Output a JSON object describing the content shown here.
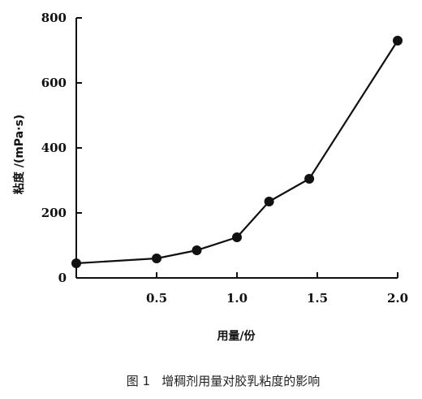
{
  "chart_data": {
    "type": "line",
    "caption": "图 1   增稠剂用量对胶乳粘度的影响",
    "xlabel": "用量/份",
    "ylabel": "粘度 /(mPa·s)",
    "xlim": [
      0,
      2.0
    ],
    "ylim": [
      0,
      800
    ],
    "x_ticks": [
      {
        "value": 0.5,
        "label": "0.5"
      },
      {
        "value": 1.0,
        "label": "1.0"
      },
      {
        "value": 1.5,
        "label": "1.5"
      },
      {
        "value": 2.0,
        "label": "2.0"
      }
    ],
    "y_ticks": [
      {
        "value": 0,
        "label": "0"
      },
      {
        "value": 200,
        "label": "200"
      },
      {
        "value": 400,
        "label": "400"
      },
      {
        "value": 600,
        "label": "600"
      },
      {
        "value": 800,
        "label": "800"
      }
    ],
    "grid": false,
    "series": [
      {
        "color": "#111111",
        "marker": "filled-circle",
        "x": [
          0,
          0.5,
          0.75,
          1.0,
          1.2,
          1.45,
          2.0
        ],
        "y": [
          45,
          60,
          85,
          125,
          235,
          305,
          730
        ]
      }
    ]
  }
}
